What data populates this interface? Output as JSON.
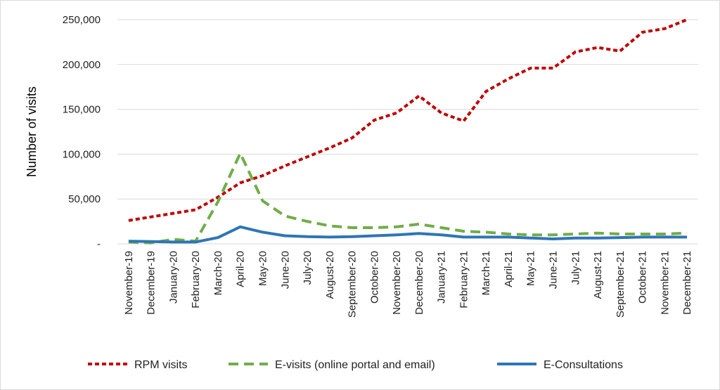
{
  "chart_data": {
    "type": "line",
    "title": "",
    "xlabel": "",
    "ylabel": "Number of visits",
    "ylim": [
      0,
      250000
    ],
    "yticks": [
      0,
      50000,
      100000,
      150000,
      200000,
      250000
    ],
    "ytick_labels": [
      "-",
      "50,000",
      "100,000",
      "150,000",
      "200,000",
      "250,000"
    ],
    "grid": "horizontal",
    "legend_position": "bottom",
    "categories": [
      "November-19",
      "December-19",
      "January-20",
      "February-20",
      "March-20",
      "April-20",
      "May-20",
      "June-20",
      "July-20",
      "August-20",
      "September-20",
      "October-20",
      "November-20",
      "December-20",
      "January-21",
      "February-21",
      "March-21",
      "April-21",
      "May-21",
      "June-21",
      "July-21",
      "August-21",
      "September-21",
      "October-21",
      "November-21",
      "December-21"
    ],
    "series": [
      {
        "name": "RPM visits",
        "color": "#c00000",
        "dash": "dotted",
        "values": [
          26000,
          30000,
          34000,
          38000,
          52000,
          68000,
          76000,
          87000,
          97000,
          107000,
          118000,
          138000,
          146000,
          165000,
          146000,
          137000,
          170000,
          184000,
          196000,
          196000,
          214000,
          219000,
          215000,
          236000,
          240000,
          250000
        ]
      },
      {
        "name": "E-visits (online portal and email)",
        "color": "#70ad47",
        "dash": "dashed",
        "values": [
          2000,
          1000,
          5000,
          3000,
          47000,
          101000,
          48000,
          31000,
          25000,
          20000,
          18000,
          18000,
          19000,
          22000,
          18000,
          14000,
          13000,
          11000,
          10000,
          10000,
          11000,
          12000,
          11000,
          11000,
          11000,
          12000
        ]
      },
      {
        "name": "E-Consultations",
        "color": "#2e75b6",
        "dash": "solid",
        "values": [
          3000,
          2500,
          2000,
          2000,
          7000,
          19000,
          13000,
          9000,
          8000,
          7500,
          8000,
          9000,
          10000,
          11500,
          10000,
          7500,
          7500,
          7500,
          6500,
          5500,
          6500,
          6500,
          7000,
          7500,
          7500,
          7500
        ]
      }
    ]
  }
}
